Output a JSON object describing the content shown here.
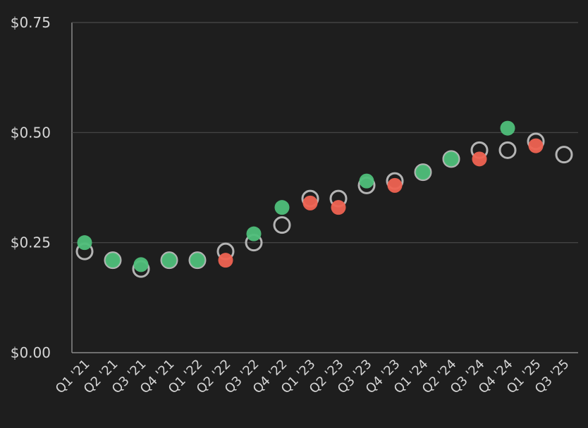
{
  "chart_data": {
    "type": "scatter",
    "title": "",
    "xlabel": "",
    "ylabel": "",
    "ylim": [
      0,
      0.75
    ],
    "y_ticks": [
      {
        "value": 0.75,
        "label": "$0.75"
      },
      {
        "value": 0.5,
        "label": "$0.50"
      },
      {
        "value": 0.25,
        "label": "$0.25"
      },
      {
        "value": 0.0,
        "label": "$0.00"
      }
    ],
    "categories": [
      "Q1 '21",
      "Q2 '21",
      "Q3 '21",
      "Q4 '21",
      "Q1 '22",
      "Q2 '22",
      "Q3 '22",
      "Q4 '22",
      "Q1 '23",
      "Q2 '23",
      "Q3 '23",
      "Q4 '23",
      "Q1 '24",
      "Q2 '24",
      "Q3 '24",
      "Q4 '24",
      "Q1 '25",
      "Q3 '25"
    ],
    "series": [
      {
        "role": "estimate",
        "values": [
          0.23,
          0.21,
          0.19,
          0.21,
          0.21,
          0.23,
          0.25,
          0.29,
          0.35,
          0.35,
          0.38,
          0.39,
          0.41,
          0.44,
          0.46,
          0.46,
          0.48,
          0.45
        ]
      },
      {
        "role": "actual",
        "values": [
          0.25,
          0.21,
          0.2,
          0.21,
          0.21,
          0.21,
          0.27,
          0.33,
          0.34,
          0.33,
          0.39,
          0.38,
          0.41,
          0.44,
          0.44,
          0.51,
          0.47,
          null
        ]
      }
    ],
    "grid": true,
    "colors": {
      "beat": "#4fbf7a",
      "miss": "#ef6352",
      "estimate": "#b4b4b4",
      "grid": "#4a4a4a",
      "axis": "#8a8a8a"
    }
  }
}
